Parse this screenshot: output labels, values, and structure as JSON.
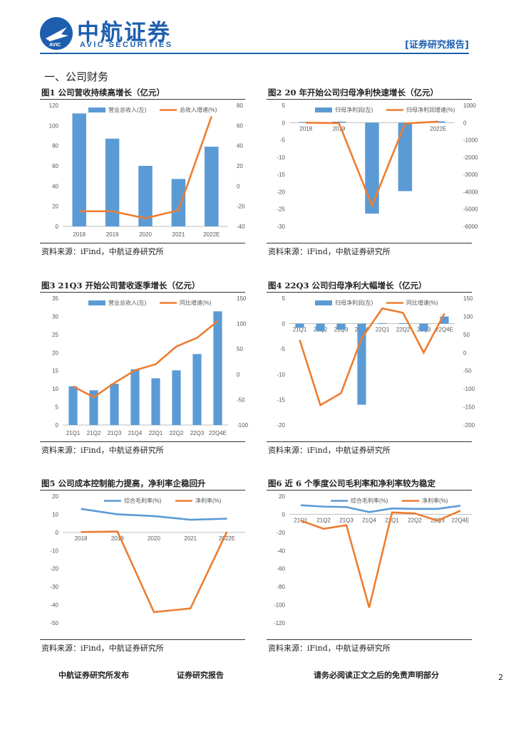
{
  "header": {
    "company": "中航证券",
    "company_en": "AVIC SECURITIES",
    "logo_badge": "AVIC",
    "report_type": "[证券研究报告]"
  },
  "section_title": "一、公司财务",
  "colors": {
    "bar": "#5b9bd5",
    "line_primary": "#ed7d31",
    "line_blue": "#5b9bd5",
    "brand": "#1d5fae"
  },
  "figures": [
    {
      "title": "图1  公司营收持续高增长（亿元）",
      "source": "资料来源：iFind，中航证券研究所",
      "chart_data": {
        "type": "bar+line",
        "categories": [
          "2018",
          "2019",
          "2020",
          "2021",
          "2022E"
        ],
        "series": [
          {
            "name": "营业总收入(左)",
            "kind": "bar",
            "axis": "left",
            "values": [
              112,
              87,
              60,
              47,
              79
            ]
          },
          {
            "name": "总收入增速(%)",
            "kind": "line",
            "axis": "right",
            "values": [
              -25,
              -25,
              -32,
              -24,
              69
            ]
          }
        ],
        "left_ticks": [
          0,
          20,
          40,
          60,
          80,
          100,
          120
        ],
        "right_ticks": [
          -40,
          -20,
          0,
          20,
          40,
          60,
          80
        ],
        "left_labels": [
          "0",
          "20",
          "40",
          "60",
          "80",
          "100",
          "120"
        ],
        "right_labels": [
          "-40",
          "-20",
          "0",
          "20",
          "40",
          "60",
          "80"
        ],
        "ylim_left": [
          0,
          120
        ],
        "ylim_right": [
          -40,
          80
        ],
        "category_axis_at": "bottom"
      }
    },
    {
      "title": "图2  20 年开始公司归母净利快速增长（亿元）",
      "source": "资料来源：iFind，中航证券研究所",
      "chart_data": {
        "type": "bar+line",
        "categories": [
          "2018",
          "2019",
          "2020",
          "2021",
          "2022E"
        ],
        "series": [
          {
            "name": "归母净利润(左)",
            "kind": "bar",
            "axis": "left",
            "values": [
              0.2,
              0.3,
              -26.3,
              -19.8,
              0.4
            ]
          },
          {
            "name": "归母净利润增速(%)",
            "kind": "line",
            "axis": "right",
            "values": [
              0,
              -30,
              -4800,
              -50,
              60
            ]
          }
        ],
        "left_ticks": [
          -30,
          -25,
          -20,
          -15,
          -10,
          -5,
          0,
          5
        ],
        "right_ticks": [
          -6000,
          -5000,
          -4000,
          -3000,
          -2000,
          -1000,
          0,
          1000
        ],
        "left_labels": [
          "-30",
          "-25",
          "-20",
          "-15",
          "-10",
          "-5",
          "0",
          "5"
        ],
        "right_labels": [
          "-6000",
          "-5000",
          "-4000",
          "-3000",
          "-2000",
          "-1000",
          "0",
          "1000"
        ],
        "ylim_left": [
          -30,
          5
        ],
        "ylim_right": [
          -6000,
          1000
        ],
        "category_axis_at": "zero"
      }
    },
    {
      "title": "图3  21Q3 开始公司营收逐季增长（亿元）",
      "source": "资料来源：iFind，中航证券研究所",
      "chart_data": {
        "type": "bar+line",
        "categories": [
          "21Q1",
          "21Q2",
          "21Q3",
          "21Q4",
          "22Q1",
          "22Q2",
          "22Q3",
          "22Q4E"
        ],
        "series": [
          {
            "name": "营业总收入(左)",
            "kind": "bar",
            "axis": "left",
            "values": [
              10.7,
              9.6,
              11.4,
              15.4,
              12.9,
              15.1,
              19.6,
              31.4
            ]
          },
          {
            "name": "同比增速(%)",
            "kind": "line",
            "axis": "right",
            "values": [
              -24,
              -45,
              -17,
              8,
              20,
              55,
              72,
              105
            ]
          }
        ],
        "left_ticks": [
          0,
          5,
          10,
          15,
          20,
          25,
          30,
          35
        ],
        "right_ticks": [
          -100,
          -50,
          0,
          50,
          100,
          150
        ],
        "left_labels": [
          "0",
          "5",
          "10",
          "15",
          "20",
          "25",
          "30",
          "35"
        ],
        "right_labels": [
          "-100",
          "-50",
          "0",
          "50",
          "100",
          "150"
        ],
        "ylim_left": [
          0,
          35
        ],
        "ylim_right": [
          -100,
          150
        ],
        "category_axis_at": "bottom"
      }
    },
    {
      "title": "图4  22Q3 公司归母净利大幅增长（亿元）",
      "source": "资料来源：iFind，中航证券研究所",
      "chart_data": {
        "type": "bar+line",
        "categories": [
          "21Q1",
          "21Q2",
          "21Q3",
          "21Q4",
          "22Q1",
          "22Q2",
          "22Q3",
          "22Q4E"
        ],
        "series": [
          {
            "name": "归母净利润(左)",
            "kind": "bar",
            "axis": "left",
            "values": [
              -0.8,
              -1.5,
              -1.2,
              -16,
              0.1,
              0.1,
              -1.5,
              1.4
            ]
          },
          {
            "name": "同比增速(%)",
            "kind": "line",
            "axis": "right",
            "values": [
              35,
              -145,
              -112,
              40,
              122,
              110,
              0,
              108
            ]
          }
        ],
        "left_ticks": [
          -20,
          -15,
          -10,
          -5,
          0,
          5
        ],
        "right_ticks": [
          -200,
          -150,
          -100,
          -50,
          0,
          50,
          100,
          150
        ],
        "left_labels": [
          "-20",
          "-15",
          "-10",
          "-5",
          "0",
          "5"
        ],
        "right_labels": [
          "-200",
          "-150",
          "-100",
          "-50",
          "0",
          "50",
          "100",
          "150"
        ],
        "ylim_left": [
          -20,
          5
        ],
        "ylim_right": [
          -200,
          150
        ],
        "category_axis_at": "zero"
      }
    },
    {
      "title": "图5  公司成本控制能力提高，净利率企稳回升",
      "source": "资料来源：iFind，中航证券研究所",
      "chart_data": {
        "type": "line",
        "categories": [
          "2018",
          "2019",
          "2020",
          "2021",
          "2022E"
        ],
        "series": [
          {
            "name": "综合毛利率(%)",
            "color": "blue",
            "values": [
              13,
              10,
              9,
              7,
              7.6
            ]
          },
          {
            "name": "净利率(%)",
            "color": "orange",
            "values": [
              0.2,
              0.5,
              -44,
              -42,
              0.4
            ]
          }
        ],
        "left_ticks": [
          -50,
          -40,
          -30,
          -20,
          -10,
          0,
          10,
          20
        ],
        "left_labels": [
          "-50",
          "-40",
          "-30",
          "-20",
          "-10",
          "0",
          "10",
          "20"
        ],
        "ylim": [
          -50,
          20
        ],
        "category_axis_at": "zero"
      }
    },
    {
      "title": "图6  近 6 个季度公司毛利率和净利率较为稳定",
      "source": "资料来源：iFind，中航证券研究所",
      "chart_data": {
        "type": "line",
        "categories": [
          "21Q1",
          "21Q2",
          "21Q3",
          "21Q4",
          "22Q1",
          "22Q2",
          "22Q3",
          "22Q4E"
        ],
        "series": [
          {
            "name": "综合毛利率(%)",
            "color": "blue",
            "values": [
              10,
              8.5,
              8,
              2.5,
              6.5,
              6,
              6,
              9.5
            ]
          },
          {
            "name": "净利率(%)",
            "color": "orange",
            "values": [
              -7,
              -16,
              -12,
              -103,
              2,
              1,
              -7,
              4
            ]
          }
        ],
        "left_ticks": [
          -120,
          -100,
          -80,
          -60,
          -40,
          -20,
          0,
          20
        ],
        "left_labels": [
          "-120",
          "-100",
          "-80",
          "-60",
          "-40",
          "-20",
          "0",
          "20"
        ],
        "ylim": [
          -120,
          20
        ],
        "category_axis_at": "zero"
      }
    }
  ],
  "footer": {
    "left": "中航证券研究所发布",
    "middle": "证券研究报告",
    "right": "请务必阅读正文之后的免责声明部分",
    "page": "2"
  }
}
